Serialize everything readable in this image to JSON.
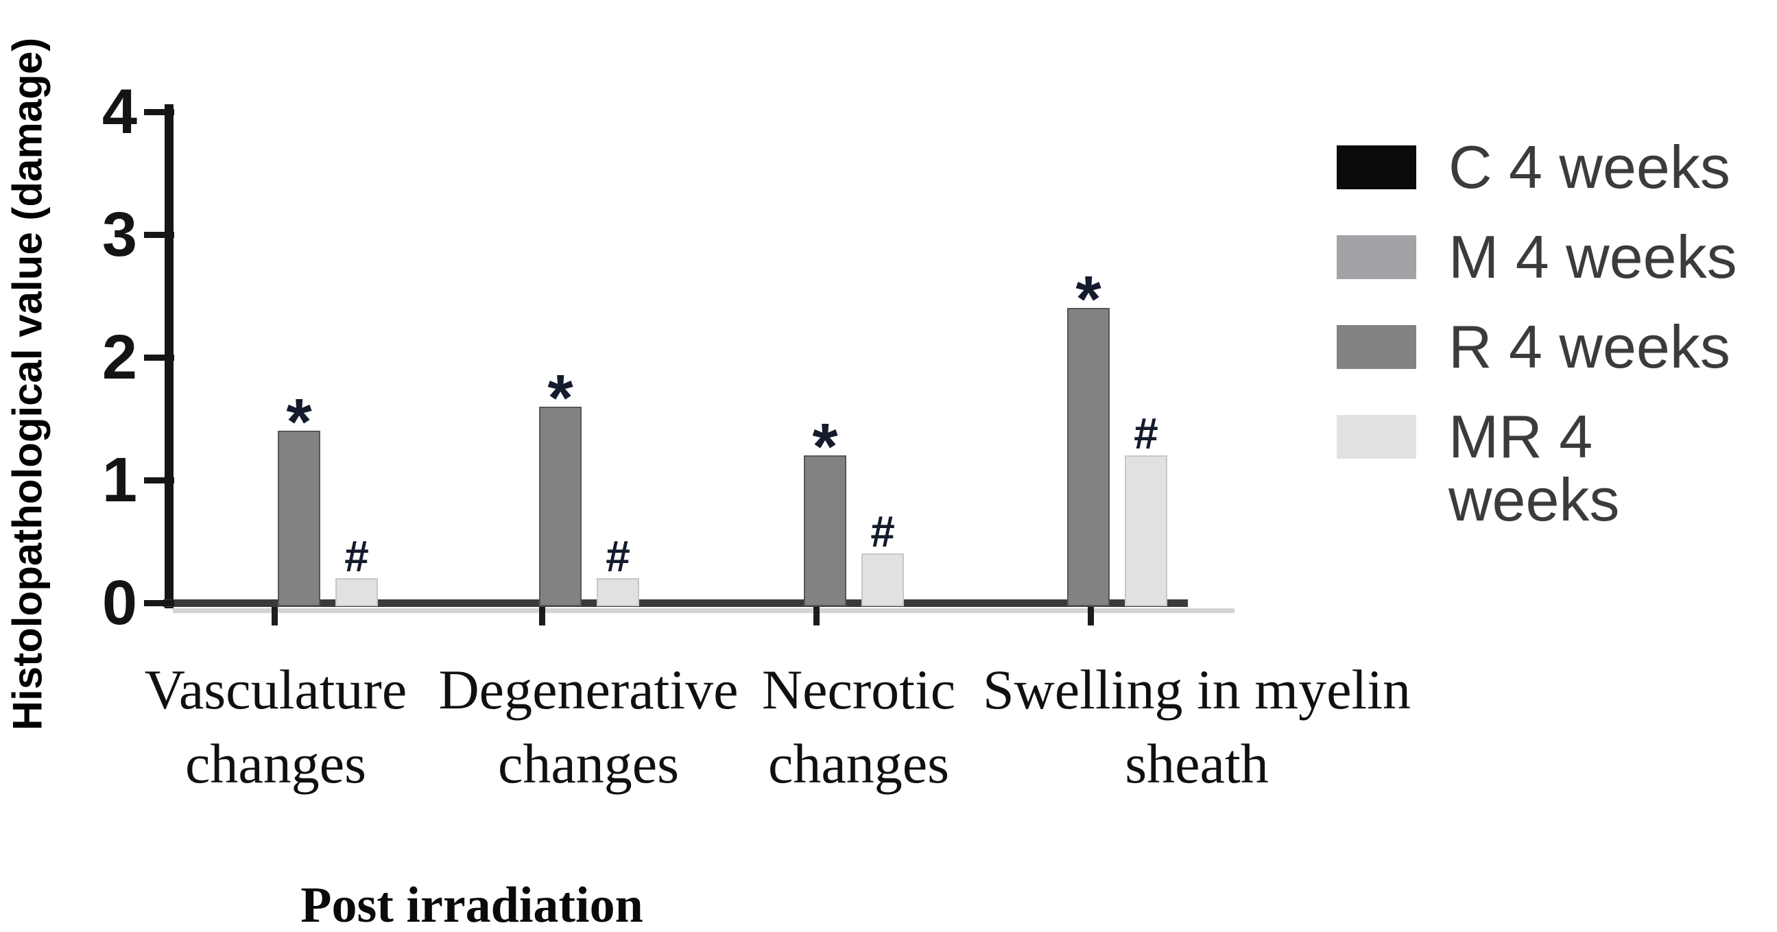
{
  "chart_data": {
    "type": "bar",
    "title": "",
    "ylabel": "Histolopathological value (damage)",
    "xlabel": "Post irradiation",
    "ylim": [
      0,
      4
    ],
    "yticks": [
      4,
      3,
      2,
      1,
      0
    ],
    "grid": false,
    "legend_position": "top-right",
    "categories": [
      "Vasculature changes",
      "Degenerative changes",
      "Necrotic changes",
      "Swelling in myelin sheath"
    ],
    "series": [
      {
        "name": "C 4 weeks",
        "color": "#0b0b0b",
        "border": "#000000",
        "marker": "",
        "values": [
          0,
          0,
          0,
          0
        ]
      },
      {
        "name": "M 4 weeks",
        "color": "#a2a3a7",
        "border": "#8f9094",
        "marker": "",
        "values": [
          0,
          0,
          0,
          0
        ]
      },
      {
        "name": "R 4 weeks",
        "color": "#828282",
        "border": "#575757",
        "marker": "*",
        "values": [
          1.4,
          1.6,
          1.2,
          2.4
        ]
      },
      {
        "name": "MR 4 weeks",
        "color": "#e1e1e1",
        "border": "#c7c7c7",
        "marker": "#",
        "values": [
          0.2,
          0.2,
          0.4,
          1.2
        ]
      }
    ],
    "marker_color": "#131b2c"
  }
}
